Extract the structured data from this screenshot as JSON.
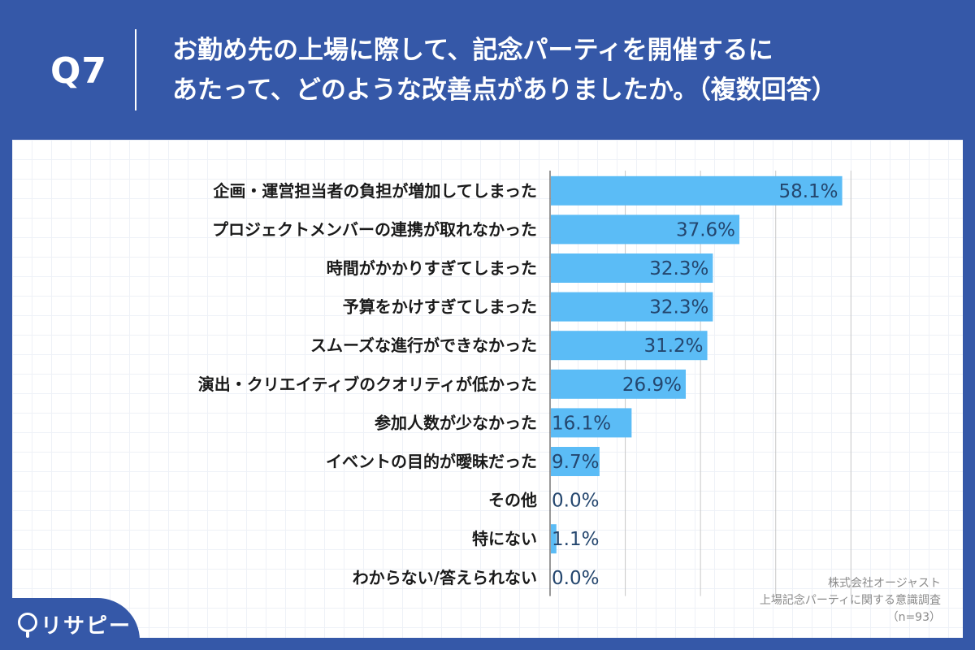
{
  "header": {
    "question_number": "Q7",
    "question_line1": "お勤め先の上場に際して、記念パーティを開催するに",
    "question_line2": "あたって、どのような改善点がありましたか。（複数回答）"
  },
  "chart_data": {
    "type": "bar",
    "orientation": "horizontal",
    "title": "お勤め先の上場に際して、記念パーティを開催するにあたって、どのような改善点がありましたか。（複数回答）",
    "categories": [
      "企画・運営担当者の負担が増加してしまった",
      "プロジェクトメンバーの連携が取れなかった",
      "時間がかかりすぎてしまった",
      "予算をかけすぎてしまった",
      "スムーズな進行ができなかった",
      "演出・クリエイティブのクオリティが低かった",
      "参加人数が少なかった",
      "イベントの目的が曖昧だった",
      "その他",
      "特にない",
      "わからない/答えられない"
    ],
    "values": [
      58.1,
      37.6,
      32.3,
      32.3,
      31.2,
      26.9,
      16.1,
      9.7,
      0.0,
      1.1,
      0.0
    ],
    "value_suffix": "%",
    "xlim": [
      0,
      70
    ],
    "grid_step": 15,
    "unit": "%",
    "bar_color": "#5bbcf6",
    "grid_color": "#c8c8c8"
  },
  "source": {
    "line1": "株式会社オージャスト",
    "line2": "上場記念パーティに関する意識調査",
    "line3": "（n=93）"
  },
  "logo": {
    "text": "リサピー"
  },
  "colors": {
    "brand_blue": "#3558a8",
    "bar": "#5bbcf6",
    "value_text": "#24466e"
  }
}
